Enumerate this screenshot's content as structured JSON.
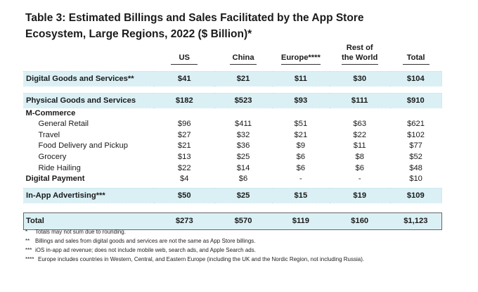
{
  "title": "Table 3: Estimated Billings and Sales Facilitated by the App Store Ecosystem, Large Regions, 2022 ($ Billion)*",
  "columns": [
    "US",
    "China",
    "Europe****",
    "Rest of the World",
    "Total"
  ],
  "rows": {
    "digital_goods": {
      "label": "Digital Goods and Services**",
      "values": [
        "$41",
        "$21",
        "$11",
        "$30",
        "$104"
      ]
    },
    "physical_goods": {
      "label": "Physical Goods and Services",
      "values": [
        "$182",
        "$523",
        "$93",
        "$111",
        "$910"
      ]
    },
    "mcommerce": {
      "label": "M-Commerce"
    },
    "general_retail": {
      "label": "General Retail",
      "values": [
        "$96",
        "$411",
        "$51",
        "$63",
        "$621"
      ]
    },
    "travel": {
      "label": "Travel",
      "values": [
        "$27",
        "$32",
        "$21",
        "$22",
        "$102"
      ]
    },
    "food_delivery": {
      "label": "Food Delivery and Pickup",
      "values": [
        "$21",
        "$36",
        "$9",
        "$11",
        "$77"
      ]
    },
    "grocery": {
      "label": "Grocery",
      "values": [
        "$13",
        "$25",
        "$6",
        "$8",
        "$52"
      ]
    },
    "ride_hailing": {
      "label": "Ride Hailing",
      "values": [
        "$22",
        "$14",
        "$6",
        "$6",
        "$48"
      ]
    },
    "digital_payment": {
      "label": "Digital Payment",
      "values": [
        "$4",
        "$6",
        "-",
        "-",
        "$10"
      ]
    },
    "in_app_ads": {
      "label": "In-App Advertising***",
      "values": [
        "$50",
        "$25",
        "$15",
        "$19",
        "$109"
      ]
    },
    "total": {
      "label": "Total",
      "values": [
        "$273",
        "$570",
        "$119",
        "$160",
        "$1,123"
      ]
    }
  },
  "footnotes": [
    {
      "marker": "*",
      "text": "Totals may not sum due to rounding."
    },
    {
      "marker": "**",
      "text": "Billings and sales from digital goods and services are not the same as App Store billings."
    },
    {
      "marker": "***",
      "text": "iOS in-app ad revenue; does not include mobile web, search ads, and Apple Search ads."
    },
    {
      "marker": "****",
      "text": "Europe includes countries in Western, Central, and Eastern Europe (including the UK and the Nordic Region, not including Russia)."
    }
  ]
}
